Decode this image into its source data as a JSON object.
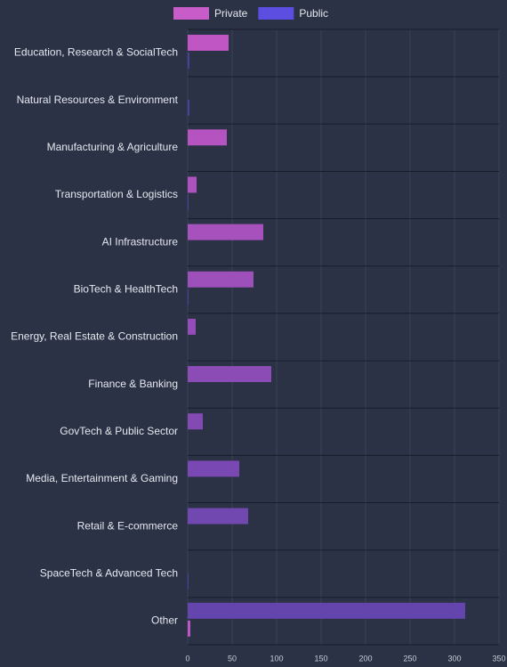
{
  "chart_data": {
    "type": "barh",
    "categories": [
      "Education, Research & SocialTech",
      "Natural Resources & Environment",
      "Manufacturing & Agriculture",
      "Transportation & Logistics",
      "AI Infrastructure",
      "BioTech & HealthTech",
      "Energy, Real Estate & Construction",
      "Finance & Banking",
      "GovTech & Public Sector",
      "Media, Entertainment & Gaming",
      "Retail & E-commerce",
      "SpaceTech & Advanced Tech",
      "Other"
    ],
    "series": [
      {
        "name": "Private",
        "color": "#c85cc8",
        "values": [
          46,
          0,
          44,
          10,
          85,
          74,
          9,
          94,
          17,
          58,
          68,
          0,
          312
        ],
        "colors": [
          "#c055c4",
          "#ba54c2",
          "#b553c0",
          "#ae52be",
          "#a651bc",
          "#9d4fba",
          "#944db8",
          "#8b4cb6",
          "#834ab4",
          "#7a48b2",
          "#7147b0",
          "#6a46ae",
          "#6444ad"
        ]
      },
      {
        "name": "Public",
        "color": "#5b4ee0",
        "values": [
          2,
          2,
          0,
          1,
          0,
          1,
          0,
          0,
          0,
          0,
          0,
          1,
          3
        ],
        "colors": [
          "#4a3f9a",
          "#4a3f9a",
          "#4a3f9a",
          "#4a3f9a",
          "#4a3f9a",
          "#4a3f9a",
          "#4a3f9a",
          "#4a3f9a",
          "#4a3f9a",
          "#4a3f9a",
          "#4a3f9a",
          "#4a3f9a",
          "#c055c4"
        ]
      }
    ],
    "xlim": [
      0,
      350
    ],
    "xticks": [
      0,
      50,
      100,
      150,
      200,
      250,
      300,
      350
    ],
    "grid": true,
    "legend": "top"
  }
}
